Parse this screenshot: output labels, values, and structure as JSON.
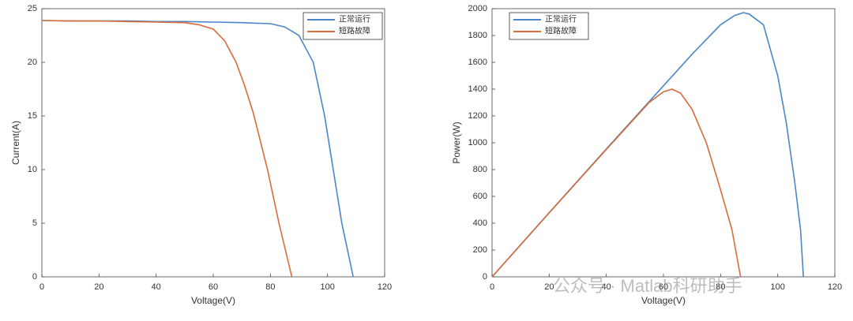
{
  "chart_data": [
    {
      "type": "line",
      "xlabel": "Voltage(V)",
      "ylabel": "Current(A)",
      "xlim": [
        0,
        120
      ],
      "xticks": [
        0,
        20,
        40,
        60,
        80,
        100,
        120
      ],
      "ylim": [
        0,
        25
      ],
      "yticks": [
        0,
        5,
        10,
        15,
        20,
        25
      ],
      "legend": "upper right",
      "series": [
        {
          "name": "正常运行",
          "color": "#4a86c8",
          "x": [
            0,
            10,
            20,
            30,
            40,
            50,
            60,
            70,
            75,
            80,
            85,
            90,
            95,
            99,
            102,
            105,
            107,
            109
          ],
          "values": [
            23.9,
            23.85,
            23.85,
            23.85,
            23.8,
            23.8,
            23.75,
            23.7,
            23.65,
            23.6,
            23.3,
            22.5,
            20,
            15,
            10,
            5,
            2.5,
            0
          ]
        },
        {
          "name": "短路故障",
          "color": "#d96b3a",
          "x": [
            0,
            10,
            20,
            30,
            40,
            50,
            55,
            60,
            64,
            68,
            71,
            74,
            79,
            83,
            87.5
          ],
          "values": [
            23.9,
            23.85,
            23.85,
            23.8,
            23.75,
            23.7,
            23.5,
            23.1,
            22,
            20,
            17.8,
            15.3,
            10,
            5,
            0
          ]
        }
      ]
    },
    {
      "type": "line",
      "xlabel": "Voltage(V)",
      "ylabel": "Power(W)",
      "xlim": [
        0,
        120
      ],
      "xticks": [
        0,
        20,
        40,
        60,
        80,
        100,
        120
      ],
      "ylim": [
        0,
        2000
      ],
      "yticks": [
        0,
        200,
        400,
        600,
        800,
        1000,
        1200,
        1400,
        1600,
        1800,
        2000
      ],
      "legend": "upper left",
      "series": [
        {
          "name": "正常运行",
          "color": "#4a86c8",
          "x": [
            0,
            20,
            40,
            60,
            70,
            80,
            85,
            88,
            90,
            95,
            100,
            103,
            106,
            108,
            109
          ],
          "values": [
            0,
            478,
            954,
            1425,
            1660,
            1880,
            1950,
            1970,
            1960,
            1880,
            1500,
            1150,
            700,
            350,
            0
          ]
        },
        {
          "name": "短路故障",
          "color": "#d96b3a",
          "x": [
            0,
            20,
            40,
            55,
            60,
            63,
            66,
            70,
            75,
            80,
            84,
            87
          ],
          "values": [
            0,
            477,
            950,
            1300,
            1380,
            1400,
            1370,
            1250,
            1000,
            650,
            350,
            0
          ]
        }
      ]
    }
  ],
  "watermark": "公众号 · Matlab科研助手"
}
